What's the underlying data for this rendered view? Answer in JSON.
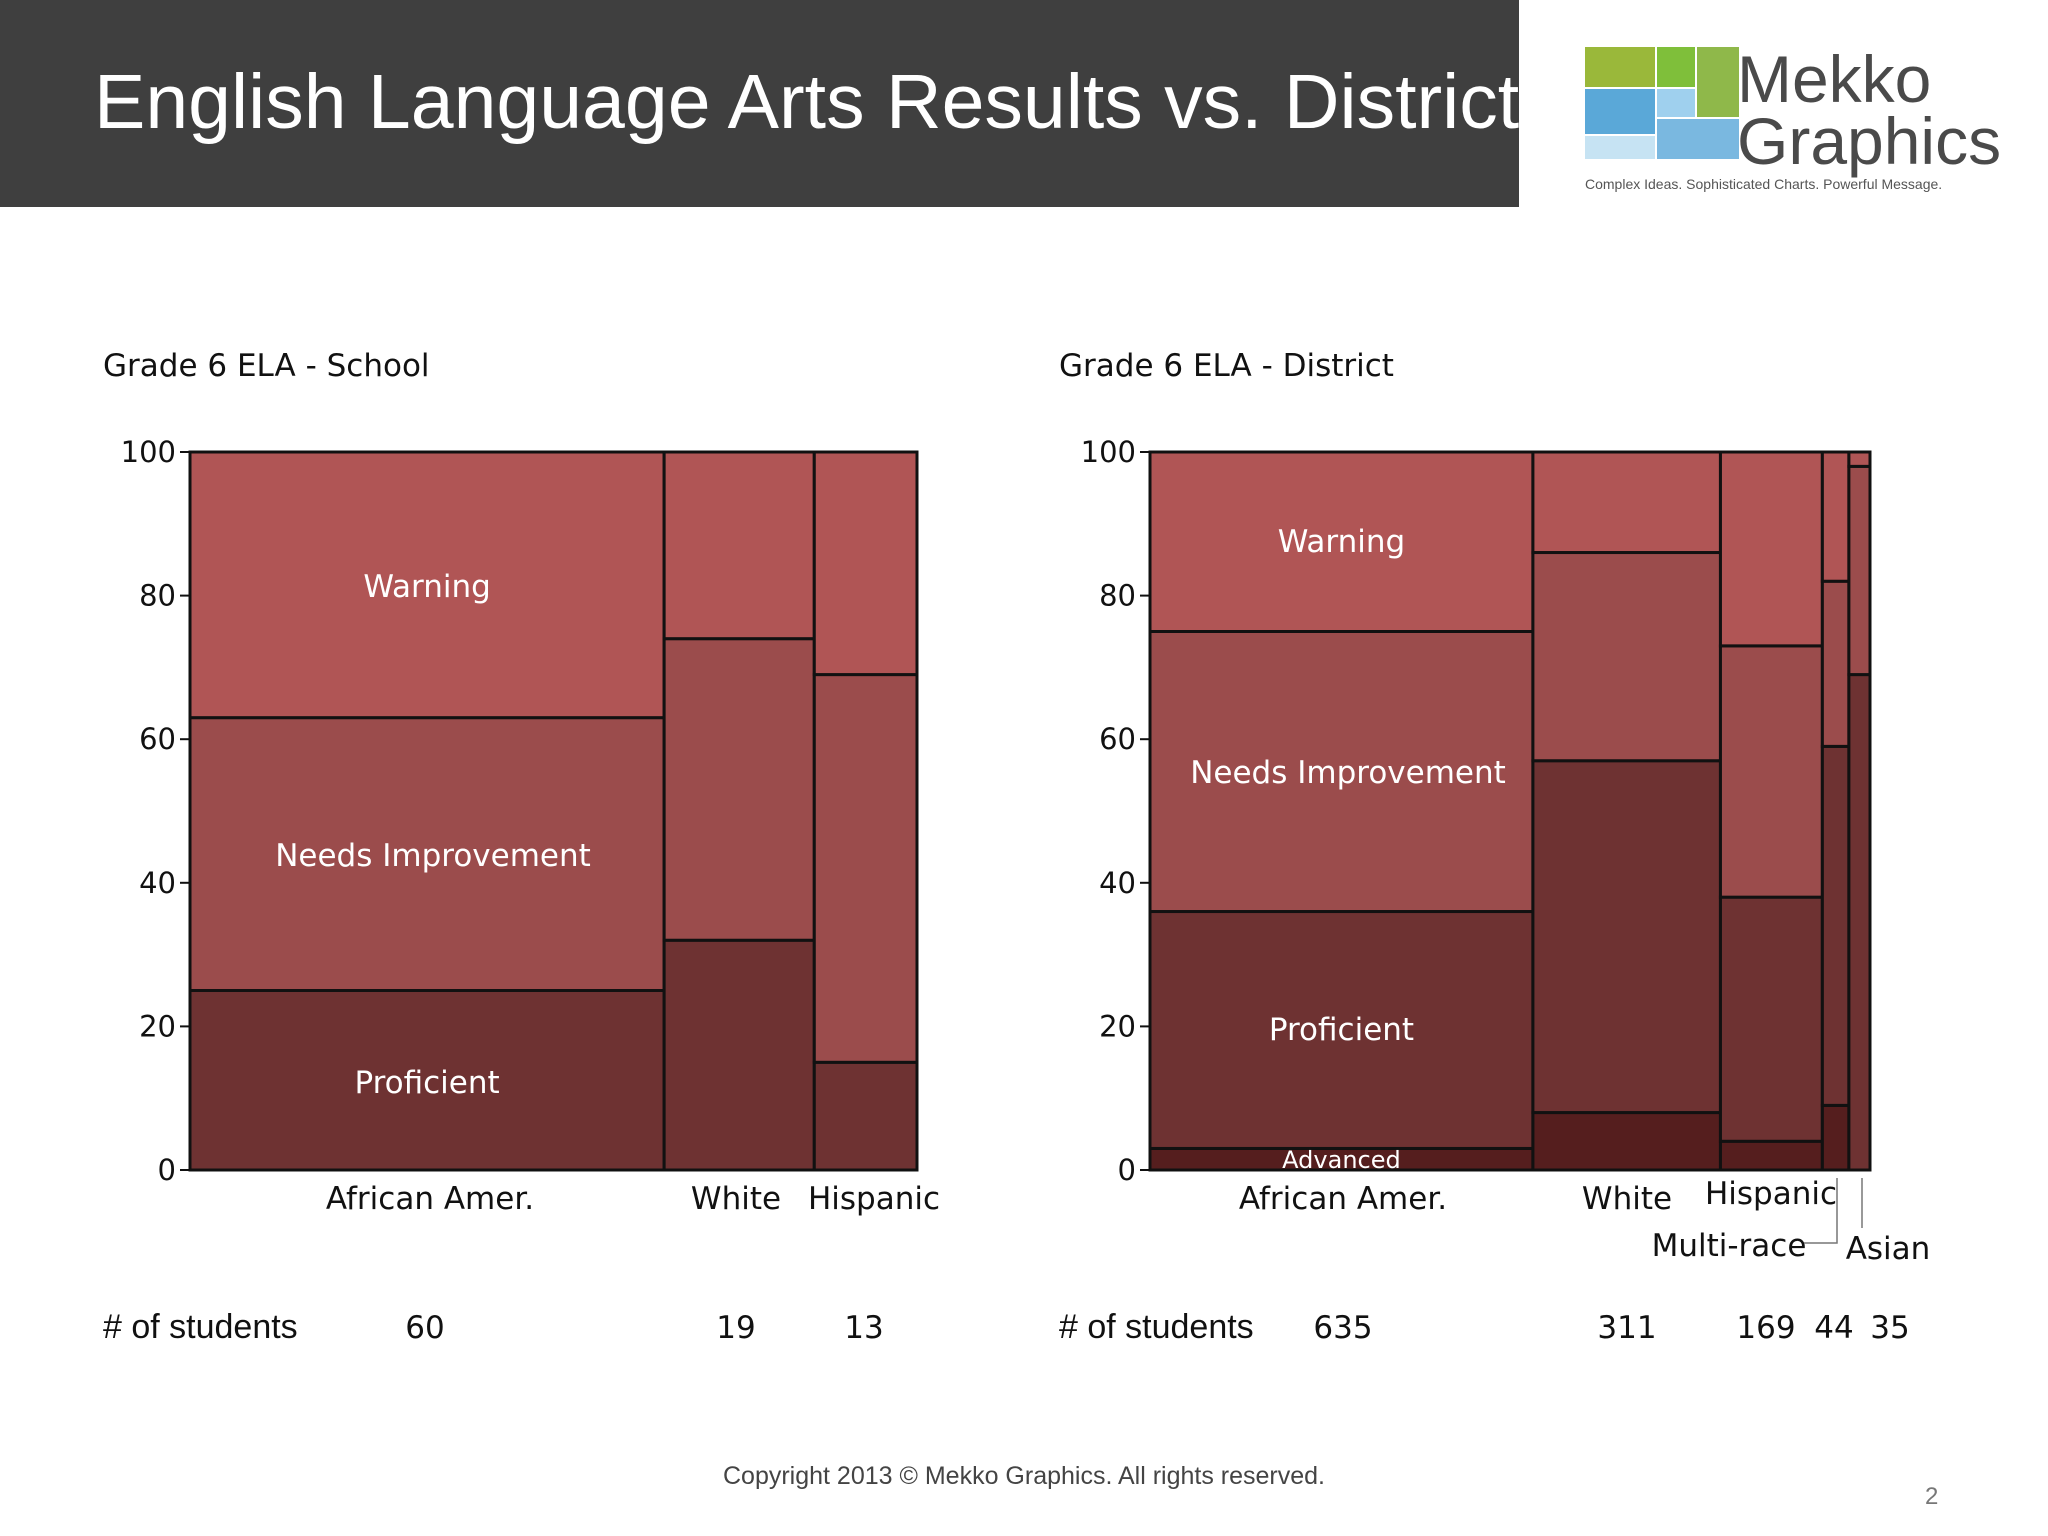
{
  "slide": {
    "title": "English Language Arts Results vs. District",
    "copyright": "Copyright 2013 © Mekko Graphics. All rights reserved.",
    "page_number": "2"
  },
  "logo": {
    "word1": "Mekko",
    "word2": "Graphics",
    "tagline": "Complex Ideas. Sophisticated Charts. Powerful Message.",
    "colors": [
      "#9ab83a",
      "#7fbf3a",
      "#5aa8d8",
      "#9fd0ee",
      "#c6e3f3"
    ]
  },
  "colors": {
    "Warning": "#b05555",
    "Needs Improvement": "#9b4c4c",
    "Proficient": "#6e3232",
    "Advanced": "#551e1e",
    "border": "#111111"
  },
  "chart_data": [
    {
      "type": "marimekko",
      "title": "Grade 6 ELA - School",
      "ylim": [
        0,
        100
      ],
      "yticks": [
        0,
        20,
        40,
        60,
        80,
        100
      ],
      "count_label": "# of students",
      "series_order": [
        "Advanced",
        "Proficient",
        "Needs Improvement",
        "Warning"
      ],
      "categories": [
        {
          "name": "African Amer.",
          "students": 60,
          "students_label": "60",
          "segments": [
            {
              "level": "Proficient",
              "value": 25,
              "label": "Proficient"
            },
            {
              "level": "Needs Improvement",
              "value": 38,
              "label": "Needs Improvement"
            },
            {
              "level": "Warning",
              "value": 37,
              "label": "Warning"
            }
          ]
        },
        {
          "name": "White",
          "students": 19,
          "students_label": "19",
          "segments": [
            {
              "level": "Proficient",
              "value": 32
            },
            {
              "level": "Needs Improvement",
              "value": 42
            },
            {
              "level": "Warning",
              "value": 26
            }
          ]
        },
        {
          "name": "Hispanic",
          "students": 13,
          "students_label": "13",
          "segments": [
            {
              "level": "Proficient",
              "value": 15
            },
            {
              "level": "Needs Improvement",
              "value": 54
            },
            {
              "level": "Warning",
              "value": 31
            }
          ]
        }
      ]
    },
    {
      "type": "marimekko",
      "title": "Grade 6 ELA - District",
      "ylim": [
        0,
        100
      ],
      "yticks": [
        0,
        20,
        40,
        60,
        80,
        100
      ],
      "count_label": "# of students",
      "series_order": [
        "Advanced",
        "Proficient",
        "Needs Improvement",
        "Warning"
      ],
      "categories": [
        {
          "name": "African Amer.",
          "students": 635,
          "students_label": "635",
          "segments": [
            {
              "level": "Advanced",
              "value": 3,
              "label": "Advanced"
            },
            {
              "level": "Proficient",
              "value": 33,
              "label": "Proficient"
            },
            {
              "level": "Needs Improvement",
              "value": 39,
              "label": "Needs Improvement"
            },
            {
              "level": "Warning",
              "value": 25,
              "label": "Warning"
            }
          ]
        },
        {
          "name": "White",
          "students": 311,
          "students_label": "311",
          "segments": [
            {
              "level": "Advanced",
              "value": 8
            },
            {
              "level": "Proficient",
              "value": 49
            },
            {
              "level": "Needs Improvement",
              "value": 29
            },
            {
              "level": "Warning",
              "value": 14
            }
          ]
        },
        {
          "name": "Hispanic",
          "students": 169,
          "students_label": "169",
          "segments": [
            {
              "level": "Advanced",
              "value": 4
            },
            {
              "level": "Proficient",
              "value": 34
            },
            {
              "level": "Needs Improvement",
              "value": 35
            },
            {
              "level": "Warning",
              "value": 27
            }
          ]
        },
        {
          "name": "Multi-race",
          "students": 44,
          "students_label": "44",
          "segments": [
            {
              "level": "Advanced",
              "value": 9
            },
            {
              "level": "Proficient",
              "value": 50
            },
            {
              "level": "Needs Improvement",
              "value": 23
            },
            {
              "level": "Warning",
              "value": 18
            }
          ]
        },
        {
          "name": "Asian",
          "students": 35,
          "students_label": "35",
          "segments": [
            {
              "level": "Proficient",
              "value": 69
            },
            {
              "level": "Needs Improvement",
              "value": 29
            },
            {
              "level": "Warning",
              "value": 2
            }
          ]
        }
      ]
    }
  ]
}
